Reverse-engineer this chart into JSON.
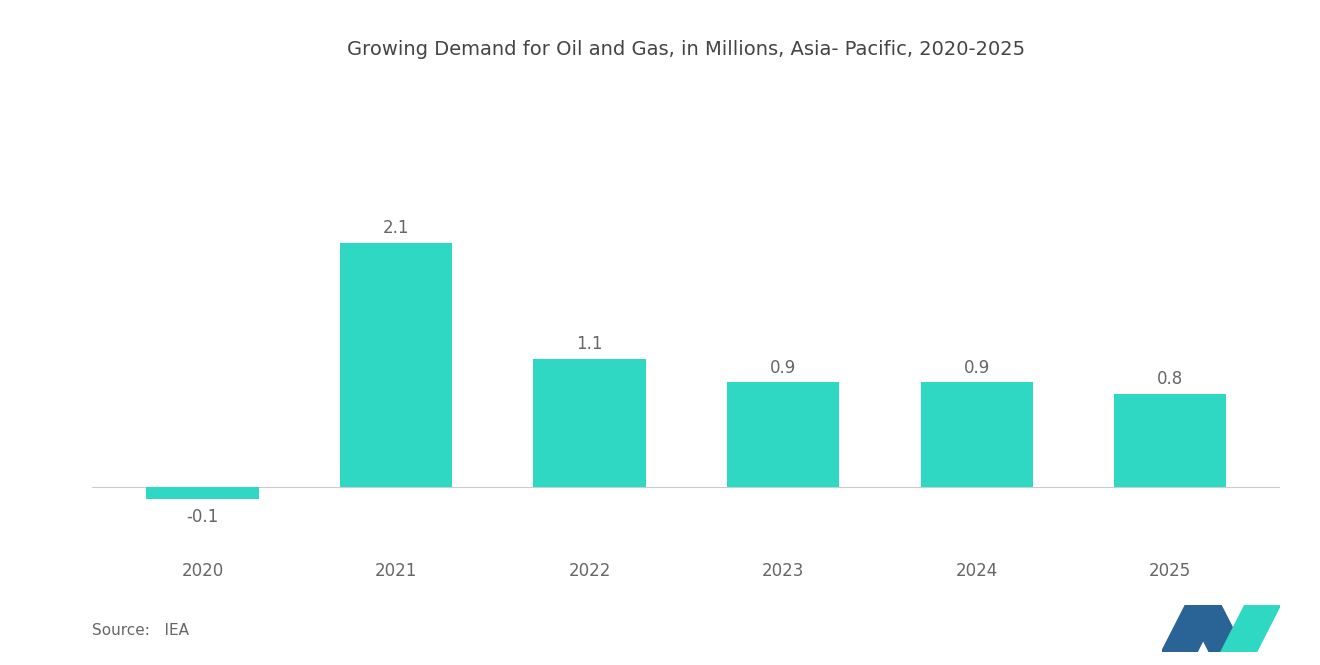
{
  "title": "Growing Demand for Oil and Gas, in Millions, Asia- Pacific, 2020-2025",
  "categories": [
    "2020",
    "2021",
    "2022",
    "2023",
    "2024",
    "2025"
  ],
  "values": [
    -0.1,
    2.1,
    1.1,
    0.9,
    0.9,
    0.8
  ],
  "bar_color": "#2ed8c3",
  "background_color": "#ffffff",
  "label_color": "#666666",
  "title_color": "#444444",
  "source_text": "Source:   IEA",
  "title_fontsize": 14,
  "label_fontsize": 12,
  "tick_fontsize": 12,
  "source_fontsize": 11,
  "ylim": [
    -0.5,
    3.5
  ],
  "bar_width": 0.58
}
